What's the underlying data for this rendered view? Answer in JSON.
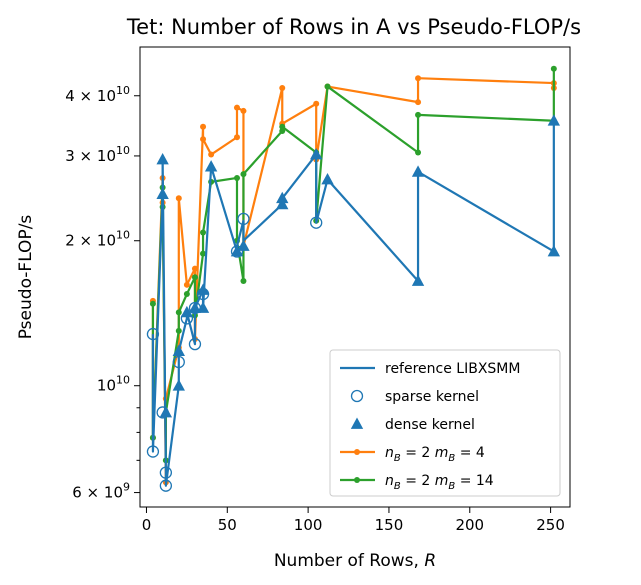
{
  "chart_data": {
    "type": "line",
    "title": "Tet: Number of Rows in A vs Pseudo-FLOP/s",
    "xlabel": "Number of Rows, R",
    "ylabel": "Pseudo-FLOP/s",
    "xlim": [
      -4,
      262
    ],
    "ylim": [
      5600000000.0,
      50500000000.0
    ],
    "yscale": "log",
    "x_ticks": [
      0,
      50,
      100,
      150,
      200,
      250
    ],
    "x_tick_labels": [
      "0",
      "50",
      "100",
      "150",
      "200",
      "250"
    ],
    "y_major_ticks": [
      {
        "value": 6000000000.0,
        "mantissa": "6",
        "exponent": "9"
      },
      {
        "value": 10000000000.0,
        "mantissa": "",
        "exponent": "10"
      },
      {
        "value": 20000000000.0,
        "mantissa": "2",
        "exponent": "10"
      },
      {
        "value": 30000000000.0,
        "mantissa": "3",
        "exponent": "10"
      },
      {
        "value": 40000000000.0,
        "mantissa": "4",
        "exponent": "10"
      }
    ],
    "y_minor_ticks": [
      7000000000.0,
      8000000000.0,
      9000000000.0
    ],
    "legend_position": "lower right",
    "legend": [
      {
        "label": "reference LIBXSMM",
        "kind": "line"
      },
      {
        "label": "sparse kernel",
        "kind": "circle"
      },
      {
        "label": "dense kernel",
        "kind": "triangle"
      },
      {
        "label_parts": [
          "n",
          "B",
          " = 2 ",
          "m",
          "B",
          " = 4"
        ],
        "kind": "orange"
      },
      {
        "label_parts": [
          "n",
          "B",
          " = 2 ",
          "m",
          "B",
          " = 14"
        ],
        "kind": "green"
      }
    ],
    "series": [
      {
        "name": "reference LIBXSMM",
        "color": "#1f77b4",
        "style": "line",
        "x": [
          4,
          4,
          10,
          10,
          12,
          12,
          20,
          20,
          25,
          25,
          30,
          30,
          35,
          35,
          40,
          40,
          56,
          56,
          60,
          60,
          84,
          84,
          105,
          105,
          112,
          168,
          168,
          252,
          252
        ],
        "y": [
          12800000000.0,
          7300000000.0,
          25000000000.0,
          29500000000.0,
          6600000000.0,
          6200000000.0,
          10000000000.0,
          11800000000.0,
          13800000000.0,
          14200000000.0,
          12200000000.0,
          14500000000.0,
          15800000000.0,
          14500000000.0,
          28500000000.0,
          28500000000.0,
          19000000000.0,
          19500000000.0,
          22000000000.0,
          20000000000.0,
          23800000000.0,
          24500000000.0,
          30200000000.0,
          21800000000.0,
          26800000000.0,
          16500000000.0,
          27800000000.0,
          19000000000.0,
          35500000000.0
        ]
      },
      {
        "name": "sparse kernel",
        "color": "#1f77b4",
        "style": "circle",
        "x": [
          4,
          4,
          10,
          12,
          12,
          20,
          25,
          30,
          30,
          35,
          56,
          60,
          105
        ],
        "y": [
          12800000000.0,
          7300000000.0,
          8800000000.0,
          6600000000.0,
          6200000000.0,
          11200000000.0,
          13800000000.0,
          12200000000.0,
          14500000000.0,
          15500000000.0,
          19000000000.0,
          22200000000.0,
          21800000000.0
        ]
      },
      {
        "name": "dense kernel",
        "color": "#1f77b4",
        "style": "triangle",
        "x": [
          10,
          10,
          12,
          20,
          20,
          25,
          30,
          35,
          35,
          40,
          56,
          60,
          84,
          84,
          105,
          112,
          168,
          168,
          252,
          252
        ],
        "y": [
          25000000000.0,
          29500000000.0,
          8800000000.0,
          10000000000.0,
          11800000000.0,
          14200000000.0,
          14500000000.0,
          15800000000.0,
          14500000000.0,
          28500000000.0,
          19000000000.0,
          19500000000.0,
          23800000000.0,
          24500000000.0,
          30200000000.0,
          26800000000.0,
          16500000000.0,
          27800000000.0,
          19000000000.0,
          35500000000.0
        ]
      },
      {
        "name": "n_B = 2 m_B = 4",
        "color": "#ff7f0e",
        "style": "line-dot",
        "x": [
          4,
          4,
          10,
          10,
          12,
          12,
          20,
          20,
          25,
          30,
          30,
          35,
          35,
          40,
          56,
          56,
          60,
          60,
          84,
          84,
          105,
          105,
          112,
          168,
          168,
          252,
          252
        ],
        "y": [
          15000000000.0,
          7800000000.0,
          27000000000.0,
          24000000000.0,
          6300000000.0,
          9400000000.0,
          12000000000.0,
          24500000000.0,
          16200000000.0,
          17500000000.0,
          12500000000.0,
          34500000000.0,
          32500000000.0,
          30200000000.0,
          32800000000.0,
          37800000000.0,
          37200000000.0,
          19500000000.0,
          41500000000.0,
          35000000000.0,
          38500000000.0,
          29500000000.0,
          41800000000.0,
          38800000000.0,
          43500000000.0,
          42500000000.0,
          41500000000.0
        ]
      },
      {
        "name": "n_B = 2 m_B = 14",
        "color": "#2ca02c",
        "style": "line-dot",
        "x": [
          4,
          4,
          10,
          10,
          12,
          12,
          20,
          20,
          25,
          30,
          30,
          35,
          35,
          40,
          56,
          56,
          60,
          60,
          84,
          84,
          105,
          105,
          112,
          168,
          168,
          252,
          252
        ],
        "y": [
          14800000000.0,
          7800000000.0,
          25800000000.0,
          23500000000.0,
          7000000000.0,
          8800000000.0,
          13000000000.0,
          14200000000.0,
          15500000000.0,
          16800000000.0,
          14000000000.0,
          18800000000.0,
          20800000000.0,
          26500000000.0,
          27000000000.0,
          20000000000.0,
          16500000000.0,
          27500000000.0,
          33800000000.0,
          34500000000.0,
          30500000000.0,
          22000000000.0,
          41800000000.0,
          30500000000.0,
          36500000000.0,
          35500000000.0,
          45500000000.0
        ]
      }
    ]
  }
}
